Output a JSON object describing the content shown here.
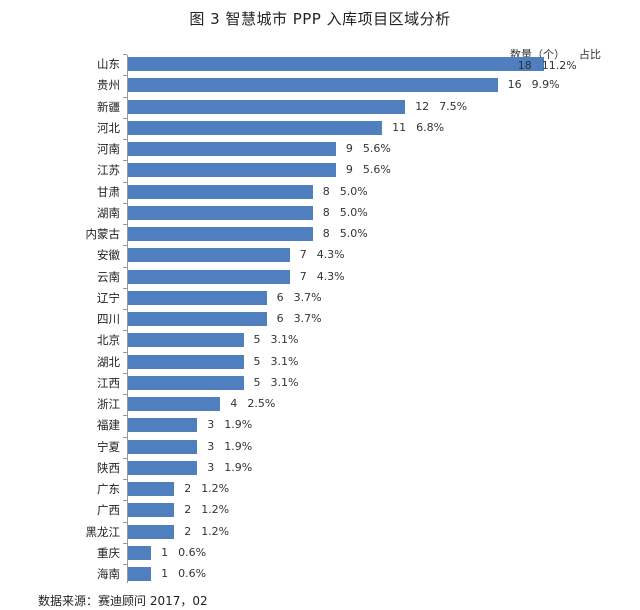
{
  "title": "图 3   智慧城市 PPP 入库项目区域分析",
  "legend": {
    "count_label": "数量（个）",
    "share_label": "占比"
  },
  "source": "数据来源：赛迪顾问   2017，02",
  "colors": {
    "bar": "#4f7fbe",
    "axis": "#999999"
  },
  "chart_data": {
    "type": "bar",
    "orientation": "horizontal",
    "title": "图 3 智慧城市 PPP 入库项目区域分析",
    "xlabel": "",
    "ylabel": "",
    "grid": false,
    "legend_position": "top-right",
    "categories": [
      "山东",
      "贵州",
      "新疆",
      "河北",
      "河南",
      "江苏",
      "甘肃",
      "湖南",
      "内蒙古",
      "安徽",
      "云南",
      "辽宁",
      "四川",
      "北京",
      "湖北",
      "江西",
      "浙江",
      "福建",
      "宁夏",
      "陕西",
      "广东",
      "广西",
      "黑龙江",
      "重庆",
      "海南"
    ],
    "series": [
      {
        "name": "数量（个）",
        "values": [
          18,
          16,
          12,
          11,
          9,
          9,
          8,
          8,
          8,
          7,
          7,
          6,
          6,
          5,
          5,
          5,
          4,
          3,
          3,
          3,
          2,
          2,
          2,
          1,
          1
        ]
      },
      {
        "name": "占比",
        "values": [
          "11.2%",
          "9.9%",
          "7.5%",
          "6.8%",
          "5.6%",
          "5.6%",
          "5.0%",
          "5.0%",
          "5.0%",
          "4.3%",
          "4.3%",
          "3.7%",
          "3.7%",
          "3.1%",
          "3.1%",
          "3.1%",
          "2.5%",
          "1.9%",
          "1.9%",
          "1.9%",
          "1.2%",
          "1.2%",
          "1.2%",
          "0.6%",
          "0.6%"
        ]
      }
    ],
    "annotation": "数据来源：赛迪顾问 2017，02"
  }
}
